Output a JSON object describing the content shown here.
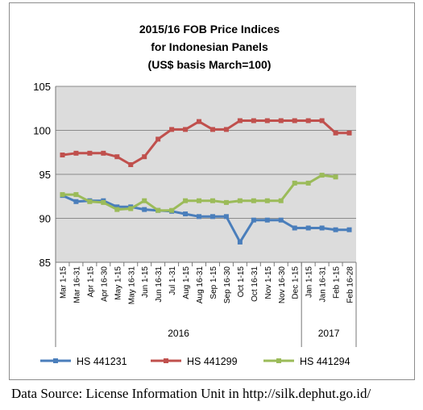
{
  "chart_data": {
    "type": "line",
    "title_lines": [
      "2015/16 FOB Price Indices",
      "for Indonesian Panels",
      "(US$ basis March=100)"
    ],
    "categories": [
      "Mar 1-15",
      "Mar 16-31",
      "Apr 1-15",
      "Apr 16-30",
      "May 1-15",
      "May 16-31",
      "Jun 1-15",
      "Jun 16-31",
      "Jul 1-31",
      "Aug 1-15",
      "Aug 16-31",
      "Sep 1-15",
      "Sep 16-30",
      "Oct 1-15",
      "Oct 16-31",
      "Nov 1-15",
      "Nov 16-30",
      "Dec 1-15",
      "Jan 1-15",
      "Jan 16-31",
      "Feb 1-15",
      "Feb 16-28"
    ],
    "x_groups": [
      {
        "label": "2016",
        "start": 0,
        "end": 17
      },
      {
        "label": "2017",
        "start": 18,
        "end": 21
      }
    ],
    "ylim": [
      85,
      105
    ],
    "yticks": [
      85,
      90,
      95,
      100,
      105
    ],
    "grid": true,
    "plot_background": "#dcdcdc",
    "legend_position": "bottom",
    "series": [
      {
        "name": "HS 441231",
        "color": "#4a7ebb",
        "values": [
          92.6,
          91.9,
          92.0,
          92.0,
          91.3,
          91.3,
          91.0,
          90.9,
          90.8,
          90.5,
          90.2,
          90.2,
          90.2,
          87.3,
          89.8,
          89.8,
          89.8,
          88.9,
          88.9,
          88.9,
          88.7,
          88.7
        ]
      },
      {
        "name": "HS 441299",
        "color": "#c0504d",
        "values": [
          97.2,
          97.4,
          97.4,
          97.4,
          97.0,
          96.1,
          97.0,
          99.0,
          100.1,
          100.1,
          101.0,
          100.1,
          100.1,
          101.1,
          101.1,
          101.1,
          101.1,
          101.1,
          101.1,
          101.1,
          99.7,
          99.7
        ]
      },
      {
        "name": "HS 441294",
        "color": "#9bbb59",
        "values": [
          92.7,
          92.7,
          91.9,
          91.8,
          91.0,
          91.1,
          92.0,
          90.9,
          90.9,
          92.0,
          92.0,
          92.0,
          91.8,
          92.0,
          92.0,
          92.0,
          92.0,
          94.0,
          94.0,
          94.9,
          94.7,
          null
        ]
      }
    ]
  },
  "footer": {
    "source_note": "Data Source: License Information Unit in http://silk.dephut.go.id/"
  }
}
